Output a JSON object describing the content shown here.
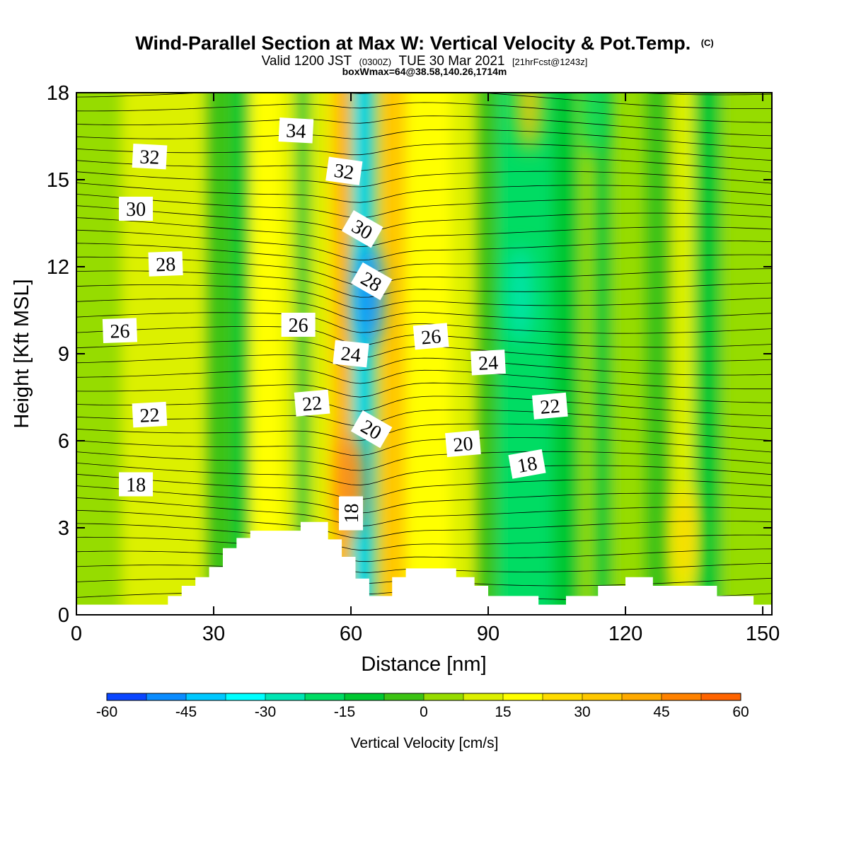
{
  "chart_data": {
    "type": "heatmap",
    "title": "Wind-Parallel Section at Max W: Vertical Velocity & Pot.Temp.",
    "title_mark": "(C)",
    "subtitle": {
      "prefix": "Valid 1200 JST",
      "utc": "(0300Z)",
      "date": "TUE 30 Mar 2021",
      "forecast": "[21hrFcst@1243z]"
    },
    "box_info": "boxWmax=64@38.58,140.26,1714m",
    "xlabel": "Distance [nm]",
    "ylabel": "Height [Kft MSL]",
    "xlim": [
      0,
      152
    ],
    "ylim": [
      0,
      18
    ],
    "x_ticks": [
      0,
      30,
      60,
      90,
      120,
      150
    ],
    "y_ticks": [
      0,
      3,
      6,
      9,
      12,
      15,
      18
    ],
    "colorbar": {
      "label": "Vertical Velocity [cm/s]",
      "min": -60,
      "max": 60,
      "step": 7.5,
      "tick_values": [
        -60,
        -45,
        -30,
        -15,
        0,
        15,
        30,
        45,
        60
      ],
      "colors": [
        "#0000ff",
        "#0a46ff",
        "#0a8cff",
        "#00c8ff",
        "#00ffff",
        "#00e6b4",
        "#00dc64",
        "#00c832",
        "#3cc314",
        "#96dc00",
        "#dcf000",
        "#ffff00",
        "#ffdc00",
        "#ffc800",
        "#ffaa00",
        "#ff8200",
        "#ff6400",
        "#ff3200",
        "#ff0000",
        "#d20032",
        "#a00050",
        "#78008c",
        "#5000a0"
      ]
    },
    "vertical_velocity_bands": [
      {
        "x_range": [
          0,
          10
        ],
        "velocity": 5
      },
      {
        "x_range": [
          10,
          28
        ],
        "velocity": 8
      },
      {
        "x_range": [
          28,
          34
        ],
        "velocity": -6
      },
      {
        "x_range": [
          34,
          38
        ],
        "velocity": -14
      },
      {
        "x_range": [
          38,
          45
        ],
        "velocity": 22
      },
      {
        "x_range": [
          45,
          48
        ],
        "velocity": 8
      },
      {
        "x_range": [
          48,
          51
        ],
        "velocity": -14
      },
      {
        "x_range": [
          51,
          55
        ],
        "velocity": 12
      },
      {
        "x_range": [
          55,
          57
        ],
        "velocity": 24
      },
      {
        "x_range": [
          57,
          60
        ],
        "velocity": 40
      },
      {
        "x_range": [
          60,
          62
        ],
        "velocity": -30
      },
      {
        "x_range": [
          62,
          64
        ],
        "velocity": -45
      },
      {
        "x_range": [
          64,
          66
        ],
        "velocity": -22
      },
      {
        "x_range": [
          66,
          72
        ],
        "velocity": 33
      },
      {
        "x_range": [
          72,
          82
        ],
        "velocity": 15
      },
      {
        "x_range": [
          82,
          87
        ],
        "velocity": 8
      },
      {
        "x_range": [
          87,
          92
        ],
        "velocity": -6
      },
      {
        "x_range": [
          92,
          104
        ],
        "velocity": -19
      },
      {
        "x_range": [
          104,
          110
        ],
        "velocity": -8
      },
      {
        "x_range": [
          110,
          113
        ],
        "velocity": 5
      },
      {
        "x_range": [
          113,
          117
        ],
        "velocity": -14
      },
      {
        "x_range": [
          117,
          124
        ],
        "velocity": 6
      },
      {
        "x_range": [
          124,
          130
        ],
        "velocity": -4
      },
      {
        "x_range": [
          130,
          135
        ],
        "velocity": 8
      },
      {
        "x_range": [
          135,
          141
        ],
        "velocity": -10
      },
      {
        "x_range": [
          141,
          152
        ],
        "velocity": 5
      }
    ],
    "velocity_features": [
      {
        "x": 97,
        "y": 11,
        "velocity": -24
      },
      {
        "x": 60,
        "y": 4.5,
        "velocity": 52
      },
      {
        "x": 133,
        "y": 2.7,
        "velocity": 28
      },
      {
        "x": 113,
        "y": 17.5,
        "velocity": -22
      },
      {
        "x": 99,
        "y": 17.7,
        "velocity": 30
      },
      {
        "x": 64,
        "y": 11,
        "velocity": -50
      }
    ],
    "terrain_profile": {
      "x": [
        0,
        17,
        20,
        23,
        26,
        29,
        32,
        35,
        38,
        42,
        49,
        55,
        58,
        61,
        64,
        66,
        69,
        72,
        76,
        83,
        87,
        90,
        96,
        101,
        107,
        114,
        120,
        126,
        134,
        140,
        148,
        152
      ],
      "height": [
        0.35,
        0.35,
        0.65,
        1.0,
        1.3,
        1.65,
        2.3,
        2.65,
        2.9,
        2.9,
        3.2,
        2.6,
        2.0,
        1.25,
        0.65,
        0.65,
        1.3,
        1.6,
        1.6,
        1.3,
        1.0,
        0.65,
        0.65,
        0.35,
        0.65,
        1.0,
        1.3,
        1.0,
        1.0,
        0.65,
        0.35,
        0.35
      ]
    },
    "isentrope_labels": [
      "18",
      "20",
      "22",
      "24",
      "26",
      "28",
      "30",
      "32",
      "34"
    ],
    "isentrope_label_positions": [
      {
        "text": "34",
        "x": 48,
        "y": 16.7,
        "angle": 3
      },
      {
        "text": "32",
        "x": 16,
        "y": 15.8,
        "angle": 3
      },
      {
        "text": "32",
        "x": 58.5,
        "y": 15.3,
        "angle": 8
      },
      {
        "text": "30",
        "x": 13,
        "y": 14.0,
        "angle": 0
      },
      {
        "text": "30",
        "x": 62.5,
        "y": 13.3,
        "angle": 30
      },
      {
        "text": "28",
        "x": 19.5,
        "y": 12.1,
        "angle": -2
      },
      {
        "text": "28",
        "x": 64.5,
        "y": 11.5,
        "angle": 30
      },
      {
        "text": "26",
        "x": 9.5,
        "y": 9.8,
        "angle": -2
      },
      {
        "text": "26",
        "x": 48.5,
        "y": 10.0,
        "angle": 0
      },
      {
        "text": "26",
        "x": 77.5,
        "y": 9.6,
        "angle": -5
      },
      {
        "text": "24",
        "x": 60,
        "y": 9.0,
        "angle": 6
      },
      {
        "text": "24",
        "x": 90,
        "y": 8.7,
        "angle": -3
      },
      {
        "text": "22",
        "x": 16,
        "y": 6.9,
        "angle": -3
      },
      {
        "text": "22",
        "x": 51.5,
        "y": 7.3,
        "angle": -5
      },
      {
        "text": "22",
        "x": 103.5,
        "y": 7.2,
        "angle": -5
      },
      {
        "text": "20",
        "x": 64.5,
        "y": 6.4,
        "angle": 30
      },
      {
        "text": "20",
        "x": 84.5,
        "y": 5.9,
        "angle": -5
      },
      {
        "text": "18",
        "x": 13,
        "y": 4.5,
        "angle": 0
      },
      {
        "text": "18",
        "x": 98.5,
        "y": 5.2,
        "angle": -10
      },
      {
        "text": "18",
        "x": 60,
        "y": 3.5,
        "angle": -90
      }
    ],
    "grid": false,
    "legend": "bottom"
  }
}
